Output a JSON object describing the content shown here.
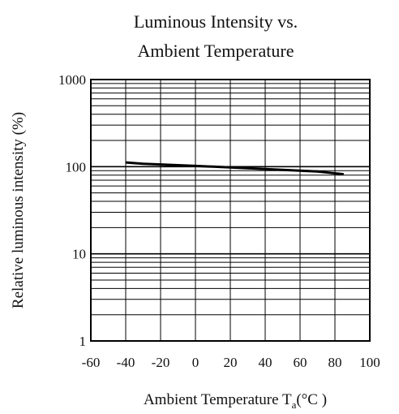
{
  "chart_data": {
    "type": "line",
    "title_lines": [
      "Luminous Intensity vs.",
      "Ambient Temperature"
    ],
    "xlabel": "Ambient Temperature T",
    "xlabel_subscript": "a",
    "xlabel_unit": "(°C )",
    "ylabel": "Relative luminous intensity (%)",
    "x_ticks": [
      -60,
      -40,
      -20,
      0,
      20,
      40,
      60,
      80,
      100
    ],
    "x_tick_labels": [
      "-60",
      "-40",
      "-20",
      "0",
      "20",
      "40",
      "60",
      "80",
      "100"
    ],
    "y_ticks": [
      1,
      10,
      100,
      1000
    ],
    "y_tick_labels": [
      "1",
      "10",
      "100",
      "1000"
    ],
    "xlim": [
      -60,
      100
    ],
    "ylim": [
      1,
      1000
    ],
    "y_scale": "log",
    "grid": true,
    "series": [
      {
        "x": [
          -40,
          -30,
          -20,
          -10,
          0,
          10,
          20,
          30,
          40,
          50,
          60,
          70,
          80,
          85
        ],
        "y": [
          112,
          108,
          106,
          104,
          102,
          100,
          98,
          96,
          94,
          92,
          90,
          88,
          84,
          82
        ]
      }
    ],
    "colors": {
      "line": "#000000",
      "grid": "#000000"
    }
  }
}
